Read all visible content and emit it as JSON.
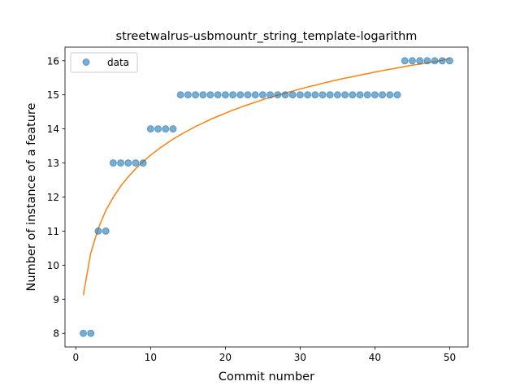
{
  "chart_data": {
    "type": "scatter",
    "title": "streetwalrus-usbmountr_string_template-logarithm",
    "xlabel": "Commit number",
    "ylabel": "Number of instance of a feature",
    "xlim": [
      -1.45,
      52.45
    ],
    "ylim": [
      7.6,
      16.4
    ],
    "xticks": [
      0,
      10,
      20,
      30,
      40,
      50
    ],
    "yticks": [
      8,
      9,
      10,
      11,
      12,
      13,
      14,
      15,
      16
    ],
    "legend": {
      "position": "top-left",
      "entries": [
        "data"
      ]
    },
    "grid": false,
    "colors": {
      "data": "#1f77b4",
      "fit": "#ff7f0e"
    },
    "series": [
      {
        "name": "data",
        "kind": "scatter",
        "x": [
          1,
          2,
          3,
          4,
          5,
          6,
          7,
          8,
          9,
          10,
          11,
          12,
          13,
          14,
          15,
          16,
          17,
          18,
          19,
          20,
          21,
          22,
          23,
          24,
          25,
          26,
          27,
          28,
          29,
          30,
          31,
          32,
          33,
          34,
          35,
          36,
          37,
          38,
          39,
          40,
          41,
          42,
          43,
          44,
          45,
          46,
          47,
          48,
          49,
          50
        ],
        "y": [
          8,
          8,
          11,
          11,
          13,
          13,
          13,
          13,
          13,
          14,
          14,
          14,
          14,
          15,
          15,
          15,
          15,
          15,
          15,
          15,
          15,
          15,
          15,
          15,
          15,
          15,
          15,
          15,
          15,
          15,
          15,
          15,
          15,
          15,
          15,
          15,
          15,
          15,
          15,
          15,
          15,
          15,
          15,
          16,
          16,
          16,
          16,
          16,
          16,
          16
        ]
      },
      {
        "kind": "line",
        "x": [
          1,
          2,
          3,
          4,
          5,
          6,
          7,
          8,
          9,
          10,
          11,
          12,
          13,
          14,
          15,
          16,
          17,
          18,
          19,
          20,
          21,
          22,
          23,
          24,
          25,
          26,
          27,
          28,
          29,
          30,
          31,
          32,
          33,
          34,
          35,
          36,
          37,
          38,
          39,
          40,
          41,
          42,
          43,
          44,
          45,
          46,
          47,
          48,
          49,
          50
        ],
        "y": [
          9.12,
          10.36,
          11.08,
          11.6,
          11.99,
          12.32,
          12.59,
          12.83,
          13.04,
          13.23,
          13.4,
          13.55,
          13.7,
          13.83,
          13.95,
          14.07,
          14.17,
          14.28,
          14.37,
          14.46,
          14.55,
          14.63,
          14.71,
          14.78,
          14.86,
          14.92,
          14.99,
          15.05,
          15.11,
          15.17,
          15.23,
          15.28,
          15.34,
          15.39,
          15.44,
          15.49,
          15.53,
          15.58,
          15.62,
          15.67,
          15.71,
          15.75,
          15.79,
          15.83,
          15.87,
          15.9,
          15.94,
          15.97,
          16.01,
          16.08
        ]
      }
    ]
  }
}
